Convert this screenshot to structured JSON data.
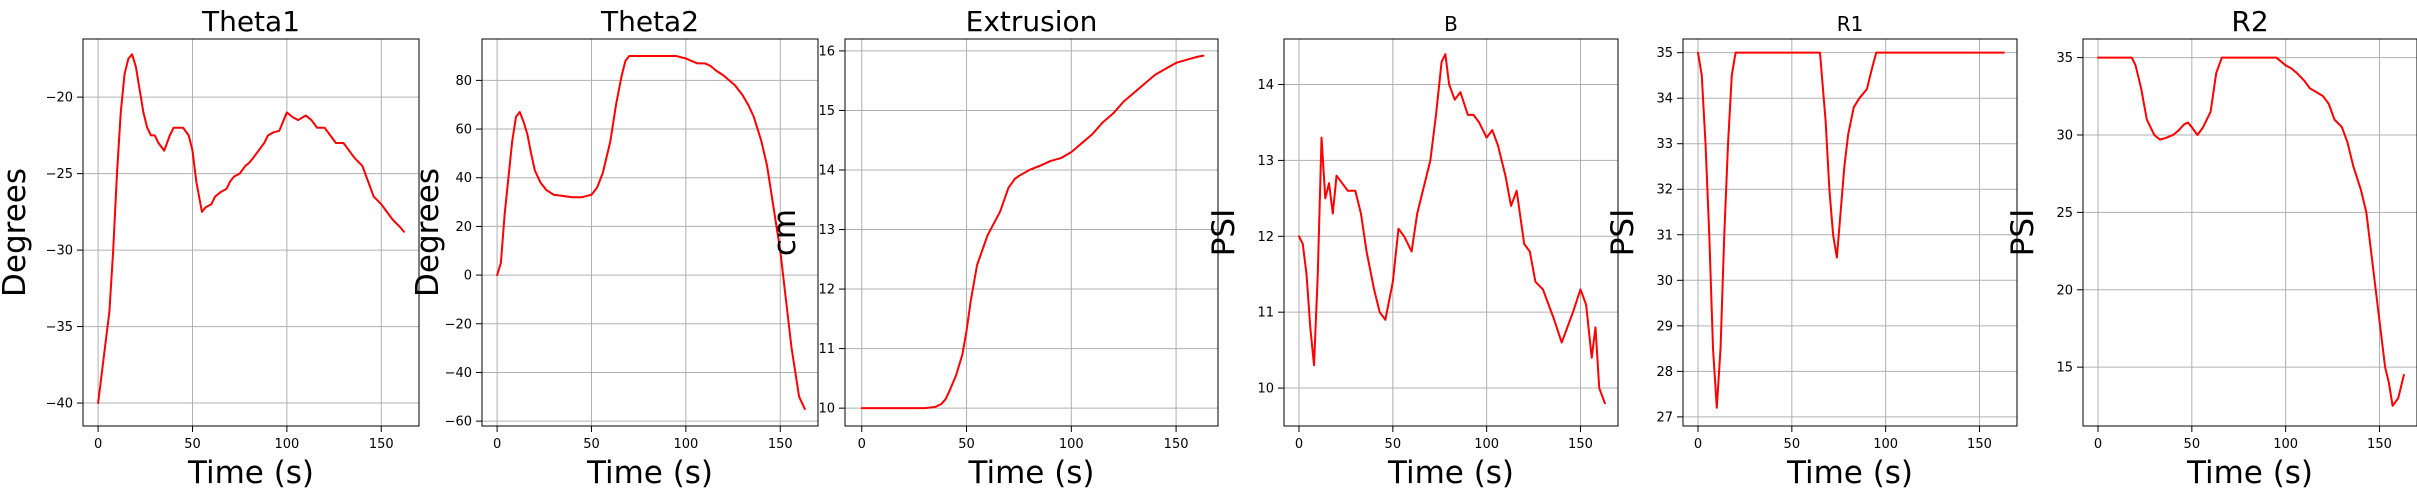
{
  "colors": {
    "series": "#ff0000",
    "grid": "#b0b0b0"
  },
  "chart_data": [
    {
      "type": "line",
      "title": "Theta1",
      "xlabel": "Time (s)",
      "ylabel": "Degrees",
      "xlim": [
        -8,
        170
      ],
      "ylim": [
        -41.5,
        -16.2
      ],
      "xticks": [
        0,
        50,
        100,
        150
      ],
      "yticks": [
        -40,
        -35,
        -30,
        -25,
        -20
      ],
      "grid": true,
      "series": [
        {
          "x": [
            0,
            2,
            4,
            6,
            8,
            10,
            12,
            14,
            16,
            18,
            20,
            22,
            24,
            26,
            28,
            30,
            32,
            35,
            38,
            40,
            42,
            45,
            48,
            50,
            52,
            55,
            57,
            60,
            62,
            65,
            68,
            70,
            72,
            75,
            78,
            80,
            82,
            85,
            88,
            90,
            93,
            96,
            100,
            103,
            106,
            110,
            113,
            116,
            120,
            123,
            126,
            130,
            133,
            136,
            140,
            143,
            146,
            150,
            153,
            156,
            160,
            162
          ],
          "y": [
            -40,
            -38,
            -36,
            -34,
            -30,
            -25,
            -21,
            -18.5,
            -17.5,
            -17.2,
            -18,
            -19.5,
            -21,
            -22,
            -22.5,
            -22.5,
            -23,
            -23.5,
            -22.5,
            -22,
            -22,
            -22,
            -22.5,
            -23.5,
            -25.5,
            -27.5,
            -27.2,
            -27,
            -26.5,
            -26.2,
            -26,
            -25.5,
            -25.2,
            -25,
            -24.5,
            -24.3,
            -24,
            -23.5,
            -23,
            -22.5,
            -22.3,
            -22.2,
            -21,
            -21.3,
            -21.5,
            -21.2,
            -21.5,
            -22,
            -22,
            -22.5,
            -23,
            -23,
            -23.5,
            -24,
            -24.5,
            -25.5,
            -26.5,
            -27,
            -27.5,
            -28,
            -28.5,
            -28.8
          ]
        }
      ]
    },
    {
      "type": "line",
      "title": "Theta2",
      "xlabel": "Time (s)",
      "ylabel": "Degrees",
      "xlim": [
        -8,
        170
      ],
      "ylim": [
        -62,
        97
      ],
      "xticks": [
        0,
        50,
        100,
        150
      ],
      "yticks": [
        -60,
        -40,
        -20,
        0,
        20,
        40,
        60,
        80
      ],
      "grid": true,
      "series": [
        {
          "x": [
            0,
            2,
            4,
            6,
            8,
            10,
            12,
            14,
            16,
            18,
            20,
            23,
            26,
            30,
            35,
            40,
            45,
            50,
            53,
            56,
            60,
            63,
            66,
            68,
            70,
            75,
            80,
            85,
            90,
            95,
            100,
            103,
            106,
            110,
            113,
            116,
            120,
            123,
            126,
            130,
            133,
            136,
            140,
            143,
            146,
            150,
            153,
            156,
            160,
            163
          ],
          "y": [
            0,
            5,
            25,
            40,
            55,
            65,
            67,
            63,
            58,
            50,
            43,
            38,
            35,
            33,
            32.5,
            32,
            32,
            33,
            36,
            42,
            55,
            70,
            82,
            88,
            90,
            90,
            90,
            90,
            90,
            90,
            89,
            88,
            87,
            87,
            86,
            84,
            82,
            80,
            78,
            74,
            70,
            65,
            55,
            45,
            30,
            10,
            -10,
            -30,
            -50,
            -55
          ]
        }
      ]
    },
    {
      "type": "line",
      "title": "Extrusion",
      "xlabel": "Time (s)",
      "ylabel": "cm",
      "xlim": [
        -8,
        170
      ],
      "ylim": [
        9.7,
        16.2
      ],
      "xticks": [
        0,
        50,
        100,
        150
      ],
      "yticks": [
        10,
        11,
        12,
        13,
        14,
        15,
        16
      ],
      "grid": true,
      "series": [
        {
          "x": [
            0,
            10,
            20,
            30,
            35,
            38,
            40,
            42,
            45,
            48,
            50,
            52,
            55,
            58,
            60,
            63,
            66,
            70,
            73,
            75,
            80,
            85,
            90,
            95,
            100,
            105,
            110,
            115,
            120,
            125,
            130,
            135,
            140,
            145,
            150,
            155,
            160,
            163
          ],
          "y": [
            10,
            10,
            10,
            10,
            10.02,
            10.07,
            10.15,
            10.3,
            10.55,
            10.9,
            11.3,
            11.8,
            12.4,
            12.7,
            12.9,
            13.1,
            13.3,
            13.7,
            13.85,
            13.9,
            14,
            14.07,
            14.15,
            14.2,
            14.3,
            14.45,
            14.6,
            14.8,
            14.95,
            15.15,
            15.3,
            15.45,
            15.6,
            15.7,
            15.8,
            15.85,
            15.9,
            15.92
          ]
        }
      ]
    },
    {
      "type": "line",
      "title": "B",
      "xlabel": "Time (s)",
      "ylabel": "PSI",
      "xlim": [
        -8,
        170
      ],
      "ylim": [
        9.5,
        14.6
      ],
      "xticks": [
        0,
        50,
        100,
        150
      ],
      "yticks": [
        10,
        11,
        12,
        13,
        14
      ],
      "grid": true,
      "series": [
        {
          "x": [
            0,
            2,
            4,
            6,
            8,
            10,
            12,
            14,
            16,
            18,
            20,
            23,
            26,
            30,
            33,
            36,
            40,
            43,
            46,
            50,
            53,
            56,
            60,
            63,
            66,
            70,
            73,
            76,
            78,
            80,
            83,
            86,
            90,
            93,
            96,
            100,
            103,
            106,
            110,
            113,
            116,
            120,
            123,
            126,
            130,
            133,
            136,
            140,
            143,
            146,
            150,
            153,
            156,
            158,
            160,
            163
          ],
          "y": [
            12,
            11.9,
            11.5,
            10.8,
            10.3,
            11.5,
            13.3,
            12.5,
            12.7,
            12.3,
            12.8,
            12.7,
            12.6,
            12.6,
            12.3,
            11.8,
            11.3,
            11,
            10.9,
            11.4,
            12.1,
            12,
            11.8,
            12.3,
            12.6,
            13,
            13.6,
            14.3,
            14.4,
            14,
            13.8,
            13.9,
            13.6,
            13.6,
            13.5,
            13.3,
            13.4,
            13.2,
            12.8,
            12.4,
            12.6,
            11.9,
            11.8,
            11.4,
            11.3,
            11.1,
            10.9,
            10.6,
            10.8,
            11,
            11.3,
            11.1,
            10.4,
            10.8,
            10,
            9.8
          ]
        }
      ]
    },
    {
      "type": "line",
      "title": "R1",
      "xlabel": "Time (s)",
      "ylabel": "PSI",
      "xlim": [
        -8,
        170
      ],
      "ylim": [
        26.8,
        35.3
      ],
      "xticks": [
        0,
        50,
        100,
        150
      ],
      "yticks": [
        27,
        28,
        29,
        30,
        31,
        32,
        33,
        34,
        35
      ],
      "grid": true,
      "series": [
        {
          "x": [
            0,
            2,
            4,
            6,
            8,
            10,
            12,
            14,
            16,
            18,
            20,
            25,
            30,
            40,
            50,
            60,
            65,
            68,
            70,
            72,
            74,
            76,
            78,
            80,
            83,
            86,
            90,
            93,
            95,
            100,
            110,
            120,
            130,
            140,
            150,
            160,
            163
          ],
          "y": [
            35,
            34.5,
            33,
            31,
            28.5,
            27.2,
            28.5,
            31,
            33,
            34.5,
            35,
            35,
            35,
            35,
            35,
            35,
            35,
            33.5,
            32,
            31,
            30.5,
            31.5,
            32.5,
            33.2,
            33.8,
            34,
            34.2,
            34.7,
            35,
            35,
            35,
            35,
            35,
            35,
            35,
            35,
            35
          ]
        }
      ]
    },
    {
      "type": "line",
      "title": "R2",
      "xlabel": "Time (s)",
      "ylabel": "PSI",
      "xlim": [
        -8,
        170
      ],
      "ylim": [
        11.2,
        36.2
      ],
      "xticks": [
        0,
        50,
        100,
        150
      ],
      "yticks": [
        15,
        20,
        25,
        30,
        35
      ],
      "grid": true,
      "series": [
        {
          "x": [
            0,
            10,
            18,
            20,
            23,
            26,
            30,
            33,
            36,
            40,
            43,
            46,
            48,
            50,
            53,
            56,
            60,
            63,
            66,
            70,
            75,
            80,
            90,
            95,
            100,
            103,
            106,
            110,
            113,
            116,
            120,
            123,
            126,
            130,
            133,
            136,
            140,
            143,
            146,
            150,
            153,
            155,
            157,
            160,
            163
          ],
          "y": [
            35,
            35,
            35,
            34.5,
            33,
            31,
            30,
            29.7,
            29.8,
            30,
            30.3,
            30.7,
            30.8,
            30.5,
            30,
            30.5,
            31.5,
            34,
            35,
            35,
            35,
            35,
            35,
            35,
            34.5,
            34.3,
            34,
            33.5,
            33,
            32.8,
            32.5,
            32,
            31,
            30.5,
            29.5,
            28,
            26.5,
            25,
            22,
            18,
            15,
            14,
            12.5,
            13,
            14.5
          ]
        }
      ]
    }
  ]
}
